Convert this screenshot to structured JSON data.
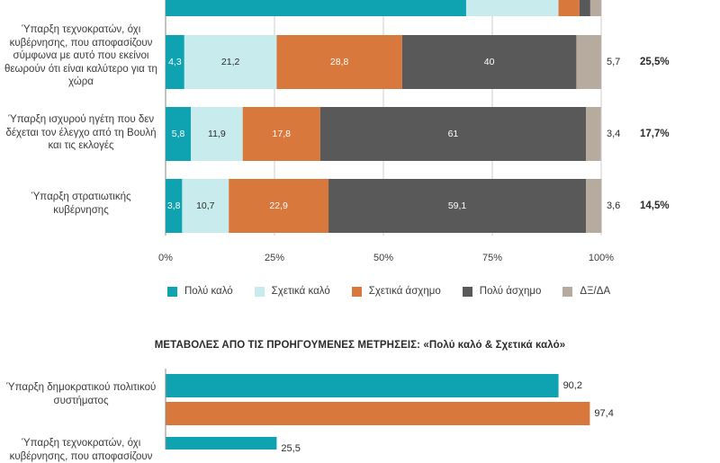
{
  "colors": {
    "very_good": "#0fa3b1",
    "fairly_good": "#c8ebee",
    "fairly_bad": "#d9783c",
    "very_bad": "#595959",
    "dk": "#b7aa9e",
    "grid": "#cccccc",
    "axis": "#888888"
  },
  "legend": [
    {
      "key": "very_good",
      "label": "Πολύ καλό"
    },
    {
      "key": "fairly_good",
      "label": "Σχετικά καλό"
    },
    {
      "key": "fairly_bad",
      "label": "Σχετικά άσχημο"
    },
    {
      "key": "very_bad",
      "label": "Πολύ άσχημο"
    },
    {
      "key": "dk",
      "label": "ΔΞ/ΔΑ"
    }
  ],
  "change_title": "ΜΕΤΑΒΟΛΕΣ ΑΠΟ ΤΙΣ ΠΡΟΗΓΟΥΜΕΝΕΣ ΜΕΤΡΗΣΕΙΣ: «Πολύ καλό & Σχετικά καλό»",
  "chart_data": [
    {
      "type": "bar",
      "orientation": "horizontal",
      "stacked": true,
      "xlim": [
        0,
        100
      ],
      "x_tick_labels": [
        "0%",
        "25%",
        "50%",
        "75%",
        "100%"
      ],
      "grid": true,
      "legend_position": "bottom",
      "series_order": [
        "very_good",
        "fairly_good",
        "fairly_bad",
        "very_bad",
        "dk"
      ],
      "rows": [
        {
          "label": "",
          "values": [
            69,
            21.2,
            4.8,
            2.5,
            2.5
          ],
          "shown_labels": [],
          "dk_label": "",
          "sum_label": "",
          "partially_visible": true
        },
        {
          "label": "Ύπαρξη τεχνοκρατών, όχι κυβέρνησης, που αποφασίζουν σύμφωνα με αυτό που εκείνοι θεωρούν ότι είναι καλύτερο για τη χώρα",
          "values": [
            4.3,
            21.2,
            28.8,
            40,
            5.7
          ],
          "shown_labels": [
            "4,3",
            "21,2",
            "28,8",
            "40"
          ],
          "dk_label": "5,7",
          "sum_label": "25,5%"
        },
        {
          "label": "Ύπαρξη ισχυρού ηγέτη που δεν δέχεται τον έλεγχο από τη Βουλή και τις εκλογές",
          "values": [
            5.8,
            11.9,
            17.8,
            61,
            3.4
          ],
          "shown_labels": [
            "5,8",
            "11,9",
            "17,8",
            "61"
          ],
          "dk_label": "3,4",
          "sum_label": "17,7%"
        },
        {
          "label": "Ύπαρξη στρατιωτικής κυβέρνησης",
          "values": [
            3.8,
            10.7,
            22.9,
            59.1,
            3.6
          ],
          "shown_labels": [
            "3,8",
            "10,7",
            "22,9",
            "59,1"
          ],
          "dk_label": "3,6",
          "sum_label": "14,5%"
        }
      ]
    },
    {
      "type": "bar",
      "orientation": "horizontal",
      "title": "ΜΕΤΑΒΟΛΕΣ ΑΠΟ ΤΙΣ ΠΡΟΗΓΟΥΜΕΝΕΣ ΜΕΤΡΗΣΕΙΣ: «Πολύ καλό & Σχετικά καλό»",
      "xlim": [
        0,
        100
      ],
      "groups": [
        {
          "label": "Ύπαρξη δημοκρατικού πολιτικού συστήματος",
          "bars": [
            {
              "value": 90.2,
              "value_label": "90,2",
              "color_key": "very_good"
            },
            {
              "value": 97.4,
              "value_label": "97,4",
              "color_key": "fairly_bad"
            }
          ]
        },
        {
          "label": "Ύπαρξη τεχνοκρατών, όχι κυβέρνησης, που αποφασίζουν",
          "bars": [
            {
              "value": 25.5,
              "value_label": "25,5",
              "color_key": "very_good"
            }
          ],
          "partially_visible": true
        }
      ]
    }
  ]
}
